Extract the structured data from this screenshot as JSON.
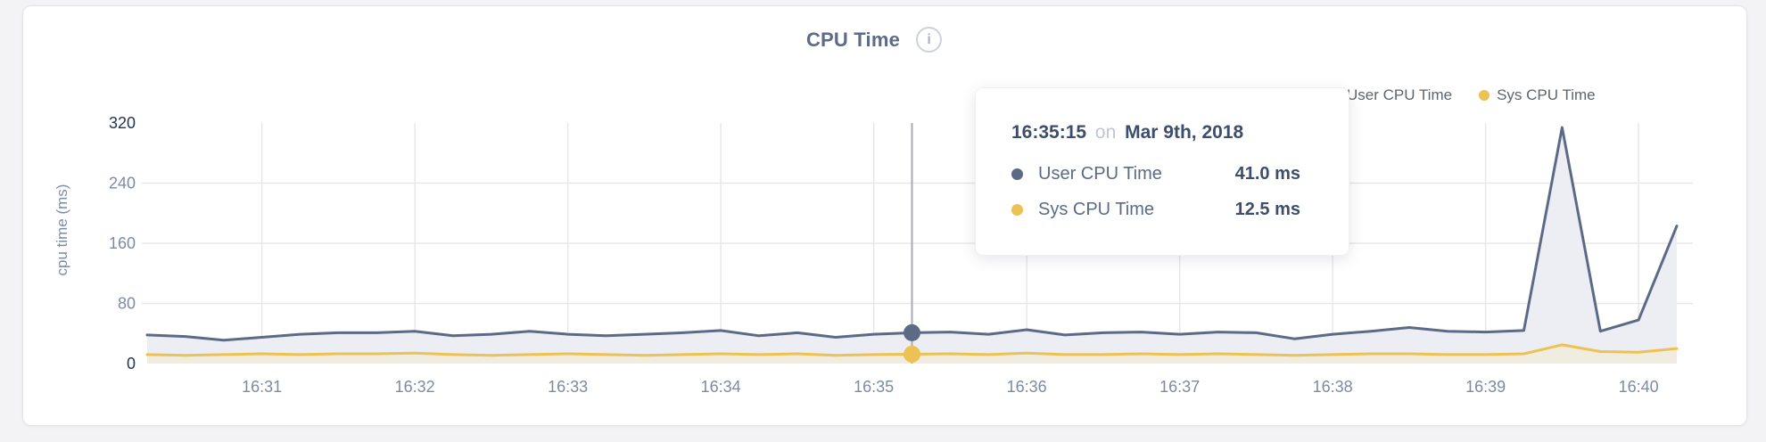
{
  "header": {
    "title": "CPU Time",
    "info_glyph": "i"
  },
  "legend": {
    "items": [
      {
        "label": "User CPU Time",
        "color": "#5c6a86"
      },
      {
        "label": "Sys CPU Time",
        "color": "#edc254"
      }
    ]
  },
  "tooltip": {
    "time": "16:35:15",
    "on_word": "on",
    "date": "Mar 9th, 2018",
    "rows": [
      {
        "label": "User CPU Time",
        "value": "41.0 ms",
        "color": "#5c6a86"
      },
      {
        "label": "Sys CPU Time",
        "value": "12.5 ms",
        "color": "#edc254"
      }
    ]
  },
  "chart_data": {
    "type": "line",
    "title": "CPU Time",
    "ylabel": "cpu time (ms)",
    "ylim": [
      0,
      320
    ],
    "y_ticks": [
      0,
      80,
      160,
      240,
      320
    ],
    "x_ticks": [
      "16:31",
      "16:32",
      "16:33",
      "16:34",
      "16:35",
      "16:36",
      "16:37",
      "16:38",
      "16:39",
      "16:40"
    ],
    "grid": true,
    "legend_position": "top-right",
    "x": [
      "16:30:15",
      "16:30:30",
      "16:30:45",
      "16:31:00",
      "16:31:15",
      "16:31:30",
      "16:31:45",
      "16:32:00",
      "16:32:15",
      "16:32:30",
      "16:32:45",
      "16:33:00",
      "16:33:15",
      "16:33:30",
      "16:33:45",
      "16:34:00",
      "16:34:15",
      "16:34:30",
      "16:34:45",
      "16:35:00",
      "16:35:15",
      "16:35:30",
      "16:35:45",
      "16:36:00",
      "16:36:15",
      "16:36:30",
      "16:36:45",
      "16:37:00",
      "16:37:15",
      "16:37:30",
      "16:37:45",
      "16:38:00",
      "16:38:15",
      "16:38:30",
      "16:38:45",
      "16:39:00",
      "16:39:15",
      "16:39:30",
      "16:39:45",
      "16:40:00",
      "16:40:15"
    ],
    "series": [
      {
        "name": "User CPU Time",
        "color": "#5c6a86",
        "area": "#eceef3",
        "values": [
          38,
          36,
          31,
          35,
          39,
          41,
          41,
          43,
          37,
          39,
          43,
          39,
          37,
          39,
          41,
          44,
          37,
          41,
          35,
          39,
          41,
          42,
          39,
          45,
          38,
          41,
          42,
          39,
          42,
          41,
          33,
          39,
          43,
          48,
          43,
          42,
          44,
          314,
          43,
          58,
          183
        ]
      },
      {
        "name": "Sys CPU Time",
        "color": "#edc254",
        "area": "#f0ecdf",
        "values": [
          12,
          11,
          12,
          13,
          12,
          13,
          13,
          14,
          12,
          11,
          12,
          13,
          12,
          11,
          12,
          13,
          12,
          13,
          11,
          12,
          12.5,
          13,
          12,
          14,
          12,
          12,
          13,
          12,
          13,
          12,
          11,
          12,
          13,
          13,
          12,
          12,
          13,
          25,
          16,
          15,
          20
        ]
      }
    ],
    "hover": {
      "index": 20,
      "time": "16:35:15",
      "date": "Mar 9th, 2018",
      "values": [
        41.0,
        12.5
      ]
    }
  }
}
